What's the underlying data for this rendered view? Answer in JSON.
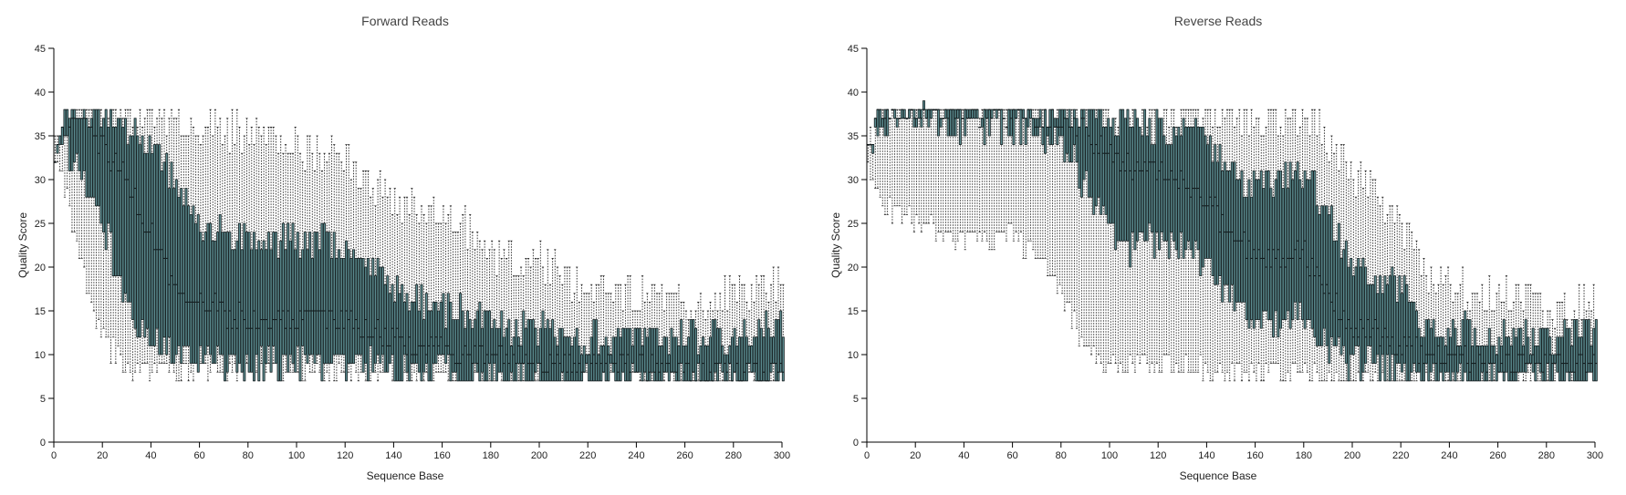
{
  "chart_data": [
    {
      "type": "box",
      "title": "Forward Reads",
      "xlabel": "Sequence Base",
      "ylabel": "Quality Score",
      "xlim": [
        0,
        300
      ],
      "ylim": [
        0,
        45
      ],
      "xticks": [
        0,
        20,
        40,
        60,
        80,
        100,
        120,
        140,
        160,
        180,
        200,
        220,
        240,
        260,
        280,
        300
      ],
      "yticks": [
        0,
        5,
        10,
        15,
        20,
        25,
        30,
        35,
        40,
        45
      ],
      "grid": false,
      "legend": "none",
      "base_start": 1,
      "base_end": 301,
      "profile": [
        {
          "x": 1,
          "whisker_low": 32,
          "q1": 34,
          "median": 34,
          "q3": 34,
          "whisker_high": 34
        },
        {
          "x": 6,
          "whisker_low": 28,
          "q1": 34,
          "median": 36,
          "q3": 38,
          "whisker_high": 38
        },
        {
          "x": 10,
          "whisker_low": 22,
          "q1": 31,
          "median": 37,
          "q3": 38,
          "whisker_high": 38
        },
        {
          "x": 20,
          "whisker_low": 12,
          "q1": 26,
          "median": 34,
          "q3": 38,
          "whisker_high": 38
        },
        {
          "x": 30,
          "whisker_low": 9,
          "q1": 16,
          "median": 30,
          "q3": 36,
          "whisker_high": 38
        },
        {
          "x": 40,
          "whisker_low": 8,
          "q1": 12,
          "median": 24,
          "q3": 34,
          "whisker_high": 38
        },
        {
          "x": 50,
          "whisker_low": 8,
          "q1": 10,
          "median": 18,
          "q3": 30,
          "whisker_high": 37
        },
        {
          "x": 60,
          "whisker_low": 8,
          "q1": 9,
          "median": 16,
          "q3": 25,
          "whisker_high": 36
        },
        {
          "x": 70,
          "whisker_low": 8,
          "q1": 9,
          "median": 15,
          "q3": 24,
          "whisker_high": 36
        },
        {
          "x": 80,
          "whisker_low": 8,
          "q1": 9,
          "median": 14,
          "q3": 23,
          "whisker_high": 35
        },
        {
          "x": 90,
          "whisker_low": 8,
          "q1": 9,
          "median": 14,
          "q3": 23,
          "whisker_high": 35
        },
        {
          "x": 100,
          "whisker_low": 8,
          "q1": 9,
          "median": 14,
          "q3": 23,
          "whisker_high": 34
        },
        {
          "x": 110,
          "whisker_low": 8,
          "q1": 9,
          "median": 14,
          "q3": 23,
          "whisker_high": 33
        },
        {
          "x": 120,
          "whisker_low": 8,
          "q1": 9,
          "median": 14,
          "q3": 22,
          "whisker_high": 32
        },
        {
          "x": 130,
          "whisker_low": 8,
          "q1": 9,
          "median": 13,
          "q3": 20,
          "whisker_high": 30
        },
        {
          "x": 140,
          "whisker_low": 8,
          "q1": 8,
          "median": 12,
          "q3": 18,
          "whisker_high": 28
        },
        {
          "x": 150,
          "whisker_low": 7,
          "q1": 8,
          "median": 11,
          "q3": 16,
          "whisker_high": 27
        },
        {
          "x": 160,
          "whisker_low": 7,
          "q1": 8,
          "median": 11,
          "q3": 15,
          "whisker_high": 26
        },
        {
          "x": 170,
          "whisker_low": 7,
          "q1": 8,
          "median": 10,
          "q3": 15,
          "whisker_high": 25
        },
        {
          "x": 180,
          "whisker_low": 7,
          "q1": 7,
          "median": 10,
          "q3": 13,
          "whisker_high": 22
        },
        {
          "x": 190,
          "whisker_low": 7,
          "q1": 7,
          "median": 10,
          "q3": 13,
          "whisker_high": 21
        },
        {
          "x": 200,
          "whisker_low": 7,
          "q1": 7,
          "median": 9,
          "q3": 13,
          "whisker_high": 21
        },
        {
          "x": 210,
          "whisker_low": 7,
          "q1": 7,
          "median": 9,
          "q3": 13,
          "whisker_high": 19
        },
        {
          "x": 220,
          "whisker_low": 7,
          "q1": 7,
          "median": 9,
          "q3": 12,
          "whisker_high": 18
        },
        {
          "x": 240,
          "whisker_low": 7,
          "q1": 7,
          "median": 9,
          "q3": 12,
          "whisker_high": 17
        },
        {
          "x": 260,
          "whisker_low": 7,
          "q1": 7,
          "median": 8,
          "q3": 12,
          "whisker_high": 16
        },
        {
          "x": 280,
          "whisker_low": 7,
          "q1": 7,
          "median": 8,
          "q3": 12,
          "whisker_high": 17
        },
        {
          "x": 301,
          "whisker_low": 7,
          "q1": 7,
          "median": 8,
          "q3": 13,
          "whisker_high": 18
        }
      ]
    },
    {
      "type": "box",
      "title": "Reverse Reads",
      "xlabel": "Sequence Base",
      "ylabel": "Quality Score",
      "xlim": [
        0,
        300
      ],
      "ylim": [
        0,
        45
      ],
      "xticks": [
        0,
        20,
        40,
        60,
        80,
        100,
        120,
        140,
        160,
        180,
        200,
        220,
        240,
        260,
        280,
        300
      ],
      "yticks": [
        0,
        5,
        10,
        15,
        20,
        25,
        30,
        35,
        40,
        45
      ],
      "grid": false,
      "legend": "none",
      "base_start": 1,
      "base_end": 301,
      "profile": [
        {
          "x": 1,
          "whisker_low": 31,
          "q1": 33,
          "median": 34,
          "q3": 34,
          "whisker_high": 34
        },
        {
          "x": 6,
          "whisker_low": 27,
          "q1": 36,
          "median": 38,
          "q3": 38,
          "whisker_high": 38
        },
        {
          "x": 20,
          "whisker_low": 25,
          "q1": 37,
          "median": 38,
          "q3": 38,
          "whisker_high": 38
        },
        {
          "x": 40,
          "whisker_low": 23,
          "q1": 36,
          "median": 38,
          "q3": 38,
          "whisker_high": 38
        },
        {
          "x": 60,
          "whisker_low": 24,
          "q1": 36,
          "median": 38,
          "q3": 38,
          "whisker_high": 38
        },
        {
          "x": 80,
          "whisker_low": 18,
          "q1": 34,
          "median": 37,
          "q3": 38,
          "whisker_high": 38
        },
        {
          "x": 90,
          "whisker_low": 11,
          "q1": 30,
          "median": 36,
          "q3": 38,
          "whisker_high": 38
        },
        {
          "x": 100,
          "whisker_low": 9,
          "q1": 24,
          "median": 33,
          "q3": 37,
          "whisker_high": 38
        },
        {
          "x": 110,
          "whisker_low": 9,
          "q1": 22,
          "median": 31,
          "q3": 36,
          "whisker_high": 38
        },
        {
          "x": 120,
          "whisker_low": 9,
          "q1": 23,
          "median": 31,
          "q3": 36,
          "whisker_high": 38
        },
        {
          "x": 130,
          "whisker_low": 9,
          "q1": 22,
          "median": 30,
          "q3": 35,
          "whisker_high": 38
        },
        {
          "x": 140,
          "whisker_low": 8,
          "q1": 20,
          "median": 28,
          "q3": 35,
          "whisker_high": 38
        },
        {
          "x": 150,
          "whisker_low": 8,
          "q1": 16,
          "median": 24,
          "q3": 32,
          "whisker_high": 37
        },
        {
          "x": 160,
          "whisker_low": 8,
          "q1": 14,
          "median": 21,
          "q3": 29,
          "whisker_high": 37
        },
        {
          "x": 170,
          "whisker_low": 8,
          "q1": 14,
          "median": 21,
          "q3": 30,
          "whisker_high": 37
        },
        {
          "x": 180,
          "whisker_low": 8,
          "q1": 15,
          "median": 22,
          "q3": 31,
          "whisker_high": 37
        },
        {
          "x": 190,
          "whisker_low": 7,
          "q1": 11,
          "median": 17,
          "q3": 27,
          "whisker_high": 35
        },
        {
          "x": 200,
          "whisker_low": 7,
          "q1": 9,
          "median": 13,
          "q3": 20,
          "whisker_high": 30
        },
        {
          "x": 210,
          "whisker_low": 7,
          "q1": 9,
          "median": 13,
          "q3": 19,
          "whisker_high": 29
        },
        {
          "x": 220,
          "whisker_low": 7,
          "q1": 8,
          "median": 11,
          "q3": 18,
          "whisker_high": 26
        },
        {
          "x": 230,
          "whisker_low": 7,
          "q1": 7,
          "median": 10,
          "q3": 13,
          "whisker_high": 20
        },
        {
          "x": 240,
          "whisker_low": 7,
          "q1": 7,
          "median": 10,
          "q3": 13,
          "whisker_high": 18
        },
        {
          "x": 260,
          "whisker_low": 7,
          "q1": 7,
          "median": 9,
          "q3": 12,
          "whisker_high": 17
        },
        {
          "x": 280,
          "whisker_low": 7,
          "q1": 7,
          "median": 9,
          "q3": 12,
          "whisker_high": 15
        },
        {
          "x": 301,
          "whisker_low": 7,
          "q1": 7,
          "median": 9,
          "q3": 13,
          "whisker_high": 16
        }
      ]
    }
  ],
  "colors": {
    "box_fill": "#5a8a8e",
    "box_stroke": "#1b2527",
    "whisker": "#222222",
    "median": "#0d1416",
    "axis": "#000000"
  }
}
